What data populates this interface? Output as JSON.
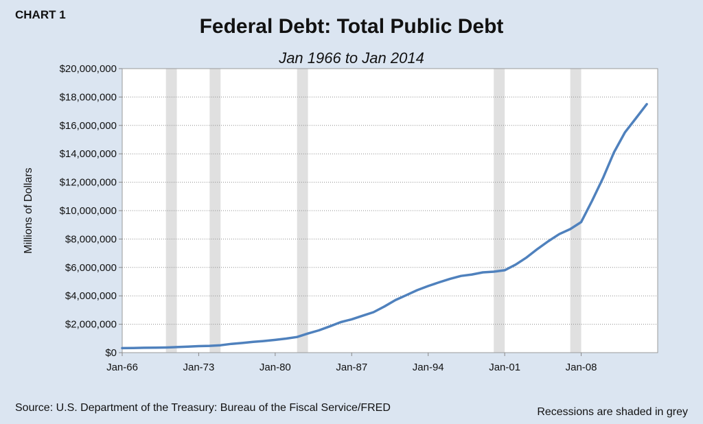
{
  "header": {
    "chart_number": "CHART 1"
  },
  "footer": {
    "source": "Source: U.S. Department of the Treasury: Bureau of the Fiscal Service/FRED",
    "note": "Recessions are shaded in grey"
  },
  "colors": {
    "background": "#dbe5f1",
    "plot_background": "#ffffff",
    "line": "#4f81bd",
    "recession_shade": "#e0e0e0"
  },
  "chart_data": {
    "type": "line",
    "title": "Federal Debt: Total Public Debt",
    "subtitle": "Jan 1966 to Jan 2014",
    "xlabel": "",
    "ylabel": "Millions of Dollars",
    "xlim": [
      1966,
      2015
    ],
    "ylim": [
      0,
      20000000
    ],
    "y_ticks": [
      0,
      2000000,
      4000000,
      6000000,
      8000000,
      10000000,
      12000000,
      14000000,
      16000000,
      18000000,
      20000000
    ],
    "y_tick_labels": [
      "$0",
      "$2,000,000",
      "$4,000,000",
      "$6,000,000",
      "$8,000,000",
      "$10,000,000",
      "$12,000,000",
      "$14,000,000",
      "$16,000,000",
      "$18,000,000",
      "$20,000,000"
    ],
    "x_ticks": [
      1966,
      1973,
      1980,
      1987,
      1994,
      2001,
      2008
    ],
    "x_tick_labels": [
      "Jan-66",
      "Jan-73",
      "Jan-80",
      "Jan-87",
      "Jan-94",
      "Jan-01",
      "Jan-08"
    ],
    "grid": "horizontal dotted",
    "recessions": [
      {
        "start": 1970.0,
        "end": 1971.0
      },
      {
        "start": 1974.0,
        "end": 1975.0
      },
      {
        "start": 1982.0,
        "end": 1983.0
      },
      {
        "start": 2000.0,
        "end": 2001.0
      },
      {
        "start": 2007.0,
        "end": 2008.0
      }
    ],
    "series": [
      {
        "name": "",
        "x": [
          1966,
          1967,
          1968,
          1969,
          1970,
          1971,
          1972,
          1973,
          1974,
          1975,
          1976,
          1977,
          1978,
          1979,
          1980,
          1981,
          1982,
          1983,
          1984,
          1985,
          1986,
          1987,
          1988,
          1989,
          1990,
          1991,
          1992,
          1993,
          1994,
          1995,
          1996,
          1997,
          1998,
          1999,
          2000,
          2001,
          2002,
          2003,
          2004,
          2005,
          2006,
          2007,
          2008,
          2009,
          2010,
          2011,
          2012,
          2013,
          2014
        ],
        "values": [
          320000,
          330000,
          345000,
          350000,
          360000,
          390000,
          420000,
          460000,
          480000,
          520000,
          620000,
          680000,
          760000,
          820000,
          900000,
          990000,
          1100000,
          1350000,
          1570000,
          1850000,
          2150000,
          2350000,
          2600000,
          2850000,
          3250000,
          3700000,
          4050000,
          4400000,
          4690000,
          4950000,
          5200000,
          5400000,
          5500000,
          5650000,
          5700000,
          5800000,
          6200000,
          6700000,
          7300000,
          7850000,
          8350000,
          8700000,
          9200000,
          10700000,
          12300000,
          14100000,
          15500000,
          16500000,
          17500000
        ]
      }
    ]
  }
}
